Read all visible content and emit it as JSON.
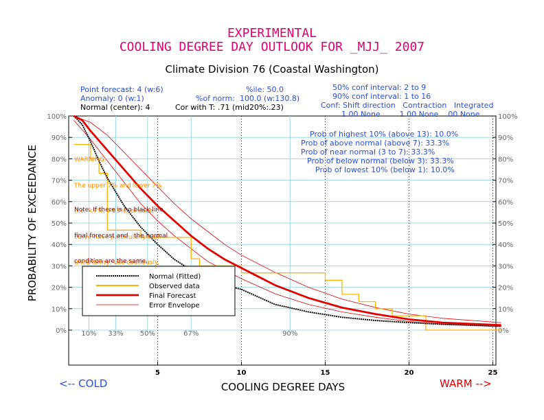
{
  "header": {
    "line1": "EXPERIMENTAL",
    "line2": "COOLING DEGREE DAY OUTLOOK FOR _MJJ_ 2007",
    "subtitle": "Climate Division 76 (Coastal Washington)"
  },
  "info": {
    "point_forecast": "Point forecast: 4 (w:6)",
    "anomaly": "Anomaly: 0 (w:1)",
    "normal_center": "Normal (center): 4",
    "pctile": "%ile: 50.0",
    "pct_norm": "%of norm:  100.0 (w:130.8)",
    "cor": "Cor with T: .71 (mid20%:.23)",
    "conf50": "50% conf interval: 2 to 9",
    "conf90": "90% conf interval: 1 to 16",
    "conf_header": "Conf: Shift direction   Contraction   Integrated",
    "conf_values": "1.00 None        1.00 None   .00 None"
  },
  "probs": {
    "highest": "Prob of highest 10% (above 13): 10.0%",
    "above": "Prob of above normal (above 7): 33.3%",
    "near": "Prob of near normal (3 to 7): 33.3%",
    "below": "Prob of below normal (below 3): 33.3%",
    "lowest": "Prob of lowest 10% (below 1): 10.0%"
  },
  "warning": {
    "line1": "WARNING:",
    "line2": "The upper 7% and lower 7%",
    "line3": "(i.e. <7%, >93%) of each",
    "line4": "curve have particularly high",
    "line5": "uncertainty; use cautiously."
  },
  "note": {
    "line1": "Note: If there is no black line,",
    "line2": "final forecast and   the normal",
    "line3": "condition are the same."
  },
  "bottom": {
    "cold": "<-- COLD",
    "warm": "WARM -->"
  },
  "colors": {
    "normal": "#000000",
    "observed": "#ffb300",
    "final": "#e00000",
    "envelope": "#e00000",
    "grid": "#9ed8e6",
    "title": "#e0006e"
  },
  "chart_data": {
    "type": "line",
    "xlabel": "COOLING DEGREE DAYS",
    "ylabel": "PROBABILITY OF EXCEEDANCE",
    "xlim": [
      0,
      25.5
    ],
    "ylim": [
      0,
      100
    ],
    "x_ticks": [
      5,
      10,
      15,
      20,
      25
    ],
    "y_ticks": [
      "0%",
      "10%",
      "20%",
      "30%",
      "40%",
      "50%",
      "60%",
      "70%",
      "80%",
      "90%",
      "100%"
    ],
    "y_tick_values": [
      0,
      10,
      20,
      30,
      40,
      50,
      60,
      70,
      80,
      90,
      100
    ],
    "percentile_marks": [
      {
        "label": "10%",
        "x": 0.9
      },
      {
        "label": "33%",
        "x": 2.5
      },
      {
        "label": "50%",
        "x": 4.4
      },
      {
        "label": "67%",
        "x": 7.0
      },
      {
        "label": "90%",
        "x": 12.9
      }
    ],
    "legend": {
      "placement": "lower-left",
      "entries": [
        "Normal (Fitted)",
        "Observed data",
        "Final Forecast",
        "Error Envelope"
      ]
    },
    "series": [
      {
        "name": "Normal (Fitted)",
        "x": [
          0,
          0.5,
          1,
          1.5,
          2,
          3,
          4,
          5,
          6,
          7,
          8,
          9,
          10,
          12,
          14,
          16,
          18,
          20,
          22,
          25.5
        ],
        "values": [
          100,
          96,
          88,
          79,
          71,
          58,
          48,
          40,
          33,
          28,
          24,
          21,
          19,
          12,
          8.5,
          6,
          4.5,
          3.5,
          2.7,
          1.8
        ]
      },
      {
        "name": "Final Forecast",
        "x": [
          0,
          0.5,
          1,
          2,
          3,
          4,
          5,
          6,
          7,
          8,
          9,
          10,
          12,
          14,
          16,
          18,
          20,
          22,
          25.5
        ],
        "values": [
          100,
          98,
          93,
          84,
          75,
          66,
          58,
          51,
          44,
          38,
          33,
          29,
          21,
          15,
          10.5,
          7.5,
          5,
          3.5,
          2.3
        ]
      },
      {
        "name": "Error Envelope",
        "x": [
          0,
          1,
          2,
          3,
          4,
          5,
          6,
          7,
          8,
          9,
          10,
          12,
          14,
          16,
          18,
          20,
          22,
          25.5
        ],
        "values": [
          100,
          97,
          91,
          83,
          75,
          67,
          59,
          52,
          46,
          40,
          35,
          27,
          20,
          14.5,
          10.5,
          7.5,
          5.5,
          3.5
        ]
      },
      {
        "name": "Error Envelope",
        "x": [
          0,
          1,
          2,
          3,
          4,
          5,
          6,
          7,
          8,
          9,
          10,
          12,
          14,
          16,
          18,
          20,
          22,
          25.5
        ],
        "values": [
          98,
          89,
          79,
          69,
          59,
          51,
          44,
          38,
          32,
          28,
          24,
          17,
          12,
          8.5,
          6,
          4,
          2.8,
          1.6
        ]
      },
      {
        "name": "Observed data",
        "x": [
          0,
          1,
          1,
          1.5,
          1.5,
          2,
          2,
          4,
          4,
          7,
          7,
          7.5,
          7.5,
          10,
          10,
          15,
          15,
          16,
          16,
          17,
          17,
          18,
          18,
          19,
          19,
          21,
          21,
          25.5
        ],
        "values": [
          86.7,
          86.7,
          80,
          80,
          73.3,
          73.3,
          46.7,
          46.7,
          43.3,
          43.3,
          33.3,
          33.3,
          30,
          30,
          26.7,
          26.7,
          23.3,
          23.3,
          16.7,
          16.7,
          13.3,
          13.3,
          10,
          10,
          6.7,
          6.7,
          0,
          0
        ]
      }
    ]
  }
}
